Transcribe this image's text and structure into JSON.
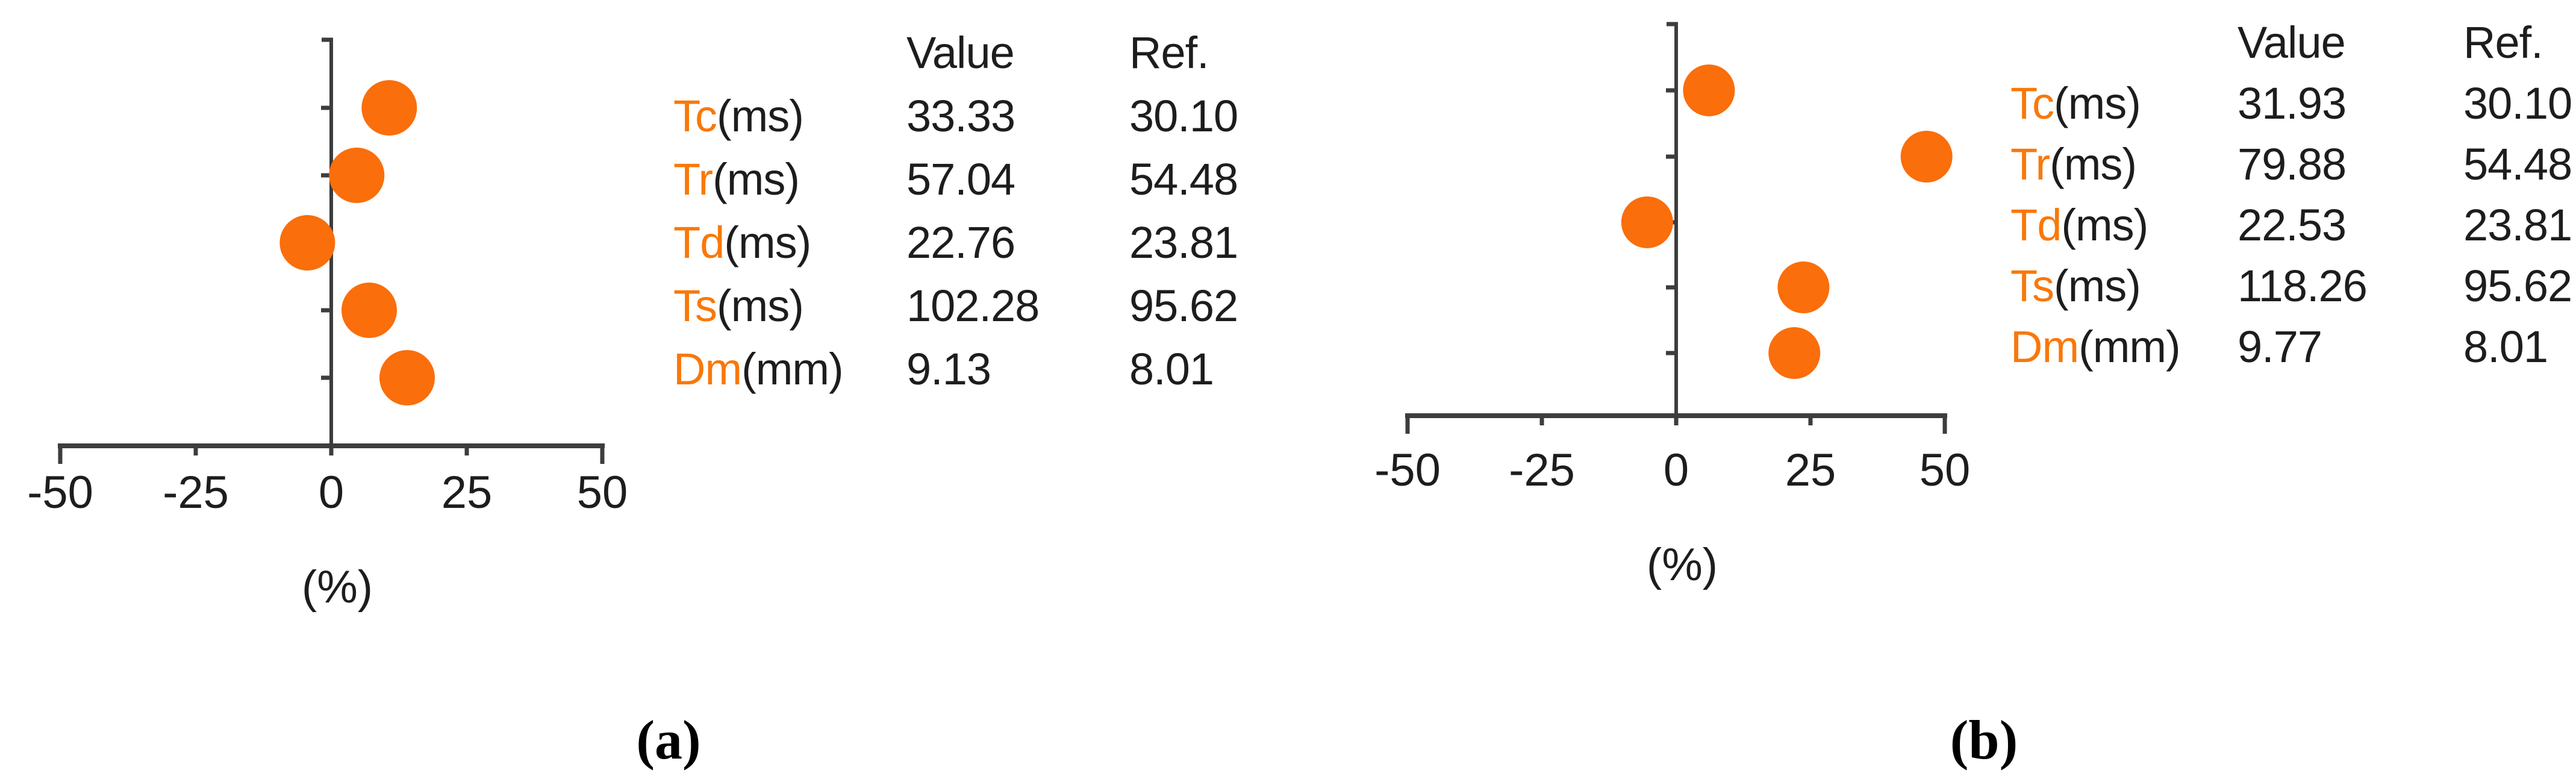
{
  "colors": {
    "accent_text": "#f9780a",
    "dot": "#fa6e0b",
    "axis": "#3d3d3d",
    "text": "#1d1d1d"
  },
  "panels": [
    {
      "caption": "(a)",
      "table": {
        "param_header": "",
        "value_header": "Value",
        "ref_header": "Ref.",
        "rows": [
          {
            "param": "Tc",
            "unit": "(ms)",
            "value": "33.33",
            "ref": "30.10"
          },
          {
            "param": "Tr",
            "unit": "(ms)",
            "value": "57.04",
            "ref": "54.48"
          },
          {
            "param": "Td",
            "unit": "(ms)",
            "value": "22.76",
            "ref": "23.81"
          },
          {
            "param": "Ts",
            "unit": "(ms)",
            "value": "102.28",
            "ref": "95.62"
          },
          {
            "param": "Dm",
            "unit": "(mm)",
            "value": "9.13",
            "ref": "8.01"
          }
        ]
      }
    },
    {
      "caption": "(b)",
      "table": {
        "param_header": "",
        "value_header": "Value",
        "ref_header": "Ref.",
        "rows": [
          {
            "param": "Tc",
            "unit": "(ms)",
            "value": "31.93",
            "ref": "30.10"
          },
          {
            "param": "Tr",
            "unit": "(ms)",
            "value": "79.88",
            "ref": "54.48"
          },
          {
            "param": "Td",
            "unit": "(ms)",
            "value": "22.53",
            "ref": "23.81"
          },
          {
            "param": "Ts",
            "unit": "(ms)",
            "value": "118.26",
            "ref": "95.62"
          },
          {
            "param": "Dm",
            "unit": "(mm)",
            "value": "9.77",
            "ref": "8.01"
          }
        ]
      }
    }
  ],
  "chart_data": [
    {
      "type": "scatter",
      "panel": "(a)",
      "xlabel": "(%)",
      "xlim": [
        -50,
        50
      ],
      "x_ticks": [
        -50,
        -25,
        0,
        25,
        50
      ],
      "grid": false,
      "categories": [
        "Tc",
        "Tr",
        "Td",
        "Ts",
        "Dm"
      ],
      "values_pct": [
        10.7,
        4.7,
        -4.4,
        7.0,
        14.0
      ],
      "series": [
        {
          "name": "Value",
          "values": [
            33.33,
            57.04,
            22.76,
            102.28,
            9.13
          ]
        },
        {
          "name": "Ref.",
          "values": [
            30.1,
            54.48,
            23.81,
            95.62,
            8.01
          ]
        }
      ]
    },
    {
      "type": "scatter",
      "panel": "(b)",
      "xlabel": "(%)",
      "xlim": [
        -50,
        50
      ],
      "x_ticks": [
        -50,
        -25,
        0,
        25,
        50
      ],
      "grid": false,
      "categories": [
        "Tc",
        "Tr",
        "Td",
        "Ts",
        "Dm"
      ],
      "values_pct": [
        6.1,
        46.6,
        -5.4,
        23.7,
        22.0
      ],
      "series": [
        {
          "name": "Value",
          "values": [
            31.93,
            79.88,
            22.53,
            118.26,
            9.77
          ]
        },
        {
          "name": "Ref.",
          "values": [
            30.1,
            54.48,
            23.81,
            95.62,
            8.01
          ]
        }
      ]
    }
  ]
}
